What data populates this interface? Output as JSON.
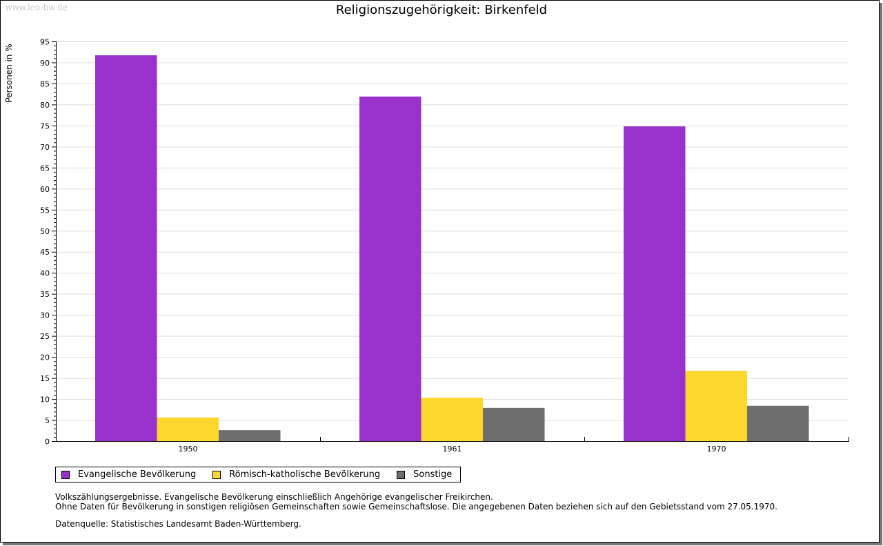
{
  "watermark": "www.leo-bw.de",
  "colors": {
    "Evangelische Bevölkerung": "#9932cc",
    "Römisch-katholische Bevölkerung": "#fcd72d",
    "Sonstige": "#6e6e6e"
  },
  "notes": {
    "line1": "Volkszählungsergebnisse. Evangelische Bevölkerung einschließlich Angehörige evangelischer Freikirchen.",
    "line2": "Ohne Daten für Bevölkerung in sonstigen religiösen Gemeinschaften sowie Gemeinschaftslose. Die angegebenen Daten beziehen sich auf den Gebietsstand vom 27.05.1970.",
    "source": "Datenquelle: Statistisches Landesamt Baden-Württemberg."
  },
  "chart_data": {
    "type": "bar",
    "title": "Religionszugehörigkeit: Birkenfeld",
    "xlabel": "",
    "ylabel": "Personen in %",
    "ylim": [
      0,
      95
    ],
    "yticks": [
      0,
      5,
      10,
      15,
      20,
      25,
      30,
      35,
      40,
      45,
      50,
      55,
      60,
      65,
      70,
      75,
      80,
      85,
      90,
      95
    ],
    "grid": true,
    "legend_position": "bottom",
    "categories": [
      "1950",
      "1961",
      "1970"
    ],
    "series": [
      {
        "name": "Evangelische Bevölkerung",
        "values": [
          91.7,
          81.9,
          74.8
        ]
      },
      {
        "name": "Römisch-katholische Bevölkerung",
        "values": [
          5.6,
          10.3,
          16.7
        ]
      },
      {
        "name": "Sonstige",
        "values": [
          2.6,
          7.9,
          8.4
        ]
      }
    ]
  }
}
